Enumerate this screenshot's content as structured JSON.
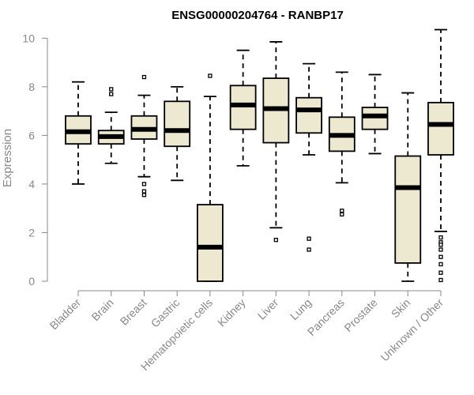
{
  "chart_data": {
    "type": "boxplot",
    "title": "ENSG00000204764 - RANBP17",
    "ylabel": "Expression",
    "xlabel": "",
    "ylim": [
      0,
      10.4
    ],
    "yticks": [
      0,
      2,
      4,
      6,
      8,
      10
    ],
    "categories": [
      "Bladder",
      "Brain",
      "Breast",
      "Gastric",
      "Hematopoietic cells",
      "Kidney",
      "Liver",
      "Lung",
      "Pancreas",
      "Prostate",
      "Skin",
      "Unknown / Other"
    ],
    "boxes": [
      {
        "name": "Bladder",
        "whisker_low": 4.0,
        "q1": 5.65,
        "median": 6.15,
        "q3": 6.8,
        "whisker_high": 8.2,
        "outliers": []
      },
      {
        "name": "Brain",
        "whisker_low": 4.85,
        "q1": 5.65,
        "median": 5.95,
        "q3": 6.2,
        "whisker_high": 6.95,
        "outliers": [
          7.7,
          7.9
        ]
      },
      {
        "name": "Breast",
        "whisker_low": 4.3,
        "q1": 5.85,
        "median": 6.25,
        "q3": 6.8,
        "whisker_high": 7.65,
        "outliers": [
          8.4,
          4.0,
          3.7,
          3.55
        ]
      },
      {
        "name": "Gastric",
        "whisker_low": 4.15,
        "q1": 5.55,
        "median": 6.2,
        "q3": 7.4,
        "whisker_high": 8.0,
        "outliers": []
      },
      {
        "name": "Hematopoietic cells",
        "whisker_low": 0.0,
        "q1": 0.0,
        "median": 1.4,
        "q3": 3.15,
        "whisker_high": 7.6,
        "outliers": [
          8.45
        ]
      },
      {
        "name": "Kidney",
        "whisker_low": 4.75,
        "q1": 6.25,
        "median": 7.25,
        "q3": 8.05,
        "whisker_high": 9.5,
        "outliers": []
      },
      {
        "name": "Liver",
        "whisker_low": 2.2,
        "q1": 5.7,
        "median": 7.1,
        "q3": 8.35,
        "whisker_high": 9.85,
        "outliers": [
          1.7
        ]
      },
      {
        "name": "Lung",
        "whisker_low": 5.2,
        "q1": 6.1,
        "median": 7.05,
        "q3": 7.55,
        "whisker_high": 8.95,
        "outliers": [
          1.75,
          1.3
        ]
      },
      {
        "name": "Pancreas",
        "whisker_low": 4.05,
        "q1": 5.35,
        "median": 6.0,
        "q3": 6.75,
        "whisker_high": 8.6,
        "outliers": [
          2.9,
          2.75
        ]
      },
      {
        "name": "Prostate",
        "whisker_low": 5.25,
        "q1": 6.25,
        "median": 6.8,
        "q3": 7.15,
        "whisker_high": 8.5,
        "outliers": []
      },
      {
        "name": "Skin",
        "whisker_low": 0.0,
        "q1": 0.75,
        "median": 3.85,
        "q3": 5.15,
        "whisker_high": 7.75,
        "outliers": []
      },
      {
        "name": "Unknown / Other",
        "whisker_low": 2.05,
        "q1": 5.2,
        "median": 6.45,
        "q3": 7.35,
        "whisker_high": 10.35,
        "outliers": [
          1.8,
          1.6,
          1.5,
          1.3,
          1.0,
          0.7,
          0.35,
          0.05
        ]
      }
    ],
    "colors": {
      "box_fill": "#ede8d0",
      "box_stroke": "#000000",
      "median": "#000000",
      "axis": "#888888",
      "tick_label": "#888888",
      "title": "#000000"
    },
    "grid": false,
    "legend": "none"
  }
}
